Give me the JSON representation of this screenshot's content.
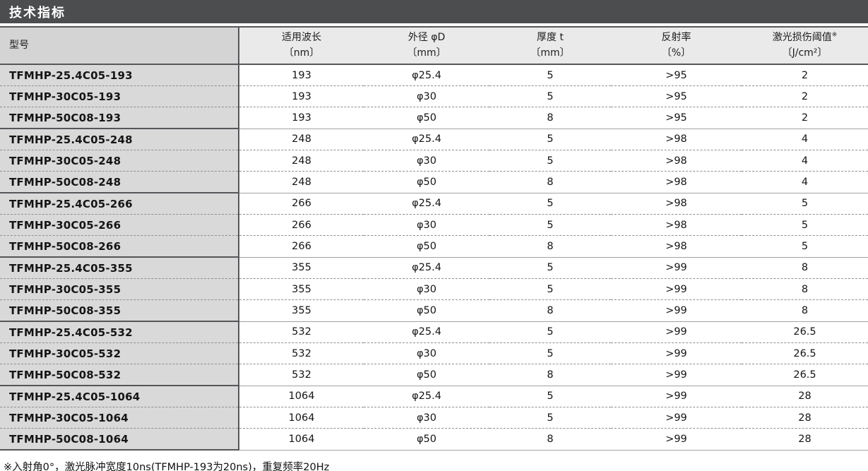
{
  "section": {
    "title": "技术指标"
  },
  "table": {
    "columns": [
      {
        "label": "型号",
        "sup": "",
        "unit": ""
      },
      {
        "label": "适用波长",
        "sup": "",
        "unit": "〔nm〕"
      },
      {
        "label": "外径 φD",
        "sup": "",
        "unit": "〔mm〕"
      },
      {
        "label": "厚度 t",
        "sup": "",
        "unit": "〔mm〕"
      },
      {
        "label": "反射率",
        "sup": "",
        "unit": "〔%〕"
      },
      {
        "label": "激光损伤阈值",
        "sup": "※",
        "unit": "〔J/cm²〕"
      }
    ],
    "rows": [
      {
        "model": "TFMHP-25.4C05-193",
        "wavelength": "193",
        "diameter": "φ25.4",
        "thickness": "5",
        "reflectivity": ">95",
        "damage_threshold": "2"
      },
      {
        "model": "TFMHP-30C05-193",
        "wavelength": "193",
        "diameter": "φ30",
        "thickness": "5",
        "reflectivity": ">95",
        "damage_threshold": "2"
      },
      {
        "model": "TFMHP-50C08-193",
        "wavelength": "193",
        "diameter": "φ50",
        "thickness": "8",
        "reflectivity": ">95",
        "damage_threshold": "2"
      },
      {
        "model": "TFMHP-25.4C05-248",
        "wavelength": "248",
        "diameter": "φ25.4",
        "thickness": "5",
        "reflectivity": ">98",
        "damage_threshold": "4"
      },
      {
        "model": "TFMHP-30C05-248",
        "wavelength": "248",
        "diameter": "φ30",
        "thickness": "5",
        "reflectivity": ">98",
        "damage_threshold": "4"
      },
      {
        "model": "TFMHP-50C08-248",
        "wavelength": "248",
        "diameter": "φ50",
        "thickness": "8",
        "reflectivity": ">98",
        "damage_threshold": "4"
      },
      {
        "model": "TFMHP-25.4C05-266",
        "wavelength": "266",
        "diameter": "φ25.4",
        "thickness": "5",
        "reflectivity": ">98",
        "damage_threshold": "5"
      },
      {
        "model": "TFMHP-30C05-266",
        "wavelength": "266",
        "diameter": "φ30",
        "thickness": "5",
        "reflectivity": ">98",
        "damage_threshold": "5"
      },
      {
        "model": "TFMHP-50C08-266",
        "wavelength": "266",
        "diameter": "φ50",
        "thickness": "8",
        "reflectivity": ">98",
        "damage_threshold": "5"
      },
      {
        "model": "TFMHP-25.4C05-355",
        "wavelength": "355",
        "diameter": "φ25.4",
        "thickness": "5",
        "reflectivity": ">99",
        "damage_threshold": "8"
      },
      {
        "model": "TFMHP-30C05-355",
        "wavelength": "355",
        "diameter": "φ30",
        "thickness": "5",
        "reflectivity": ">99",
        "damage_threshold": "8"
      },
      {
        "model": "TFMHP-50C08-355",
        "wavelength": "355",
        "diameter": "φ50",
        "thickness": "8",
        "reflectivity": ">99",
        "damage_threshold": "8"
      },
      {
        "model": "TFMHP-25.4C05-532",
        "wavelength": "532",
        "diameter": "φ25.4",
        "thickness": "5",
        "reflectivity": ">99",
        "damage_threshold": "26.5"
      },
      {
        "model": "TFMHP-30C05-532",
        "wavelength": "532",
        "diameter": "φ30",
        "thickness": "5",
        "reflectivity": ">99",
        "damage_threshold": "26.5"
      },
      {
        "model": "TFMHP-50C08-532",
        "wavelength": "532",
        "diameter": "φ50",
        "thickness": "8",
        "reflectivity": ">99",
        "damage_threshold": "26.5"
      },
      {
        "model": "TFMHP-25.4C05-1064",
        "wavelength": "1064",
        "diameter": "φ25.4",
        "thickness": "5",
        "reflectivity": ">99",
        "damage_threshold": "28"
      },
      {
        "model": "TFMHP-30C05-1064",
        "wavelength": "1064",
        "diameter": "φ30",
        "thickness": "5",
        "reflectivity": ">99",
        "damage_threshold": "28"
      },
      {
        "model": "TFMHP-50C08-1064",
        "wavelength": "1064",
        "diameter": "φ50",
        "thickness": "8",
        "reflectivity": ">99",
        "damage_threshold": "28"
      }
    ]
  },
  "footnote": "※入射角0°，激光脉冲宽度10ns(TFMHP-193为20ns)，重复频率20Hz",
  "colors": {
    "title_bar": "#4c4d4f",
    "model_column_bg": "#d9d9d9",
    "header_bg": "#eaeaea",
    "border_dark": "#55565a",
    "border_light": "#a2a2a2"
  }
}
